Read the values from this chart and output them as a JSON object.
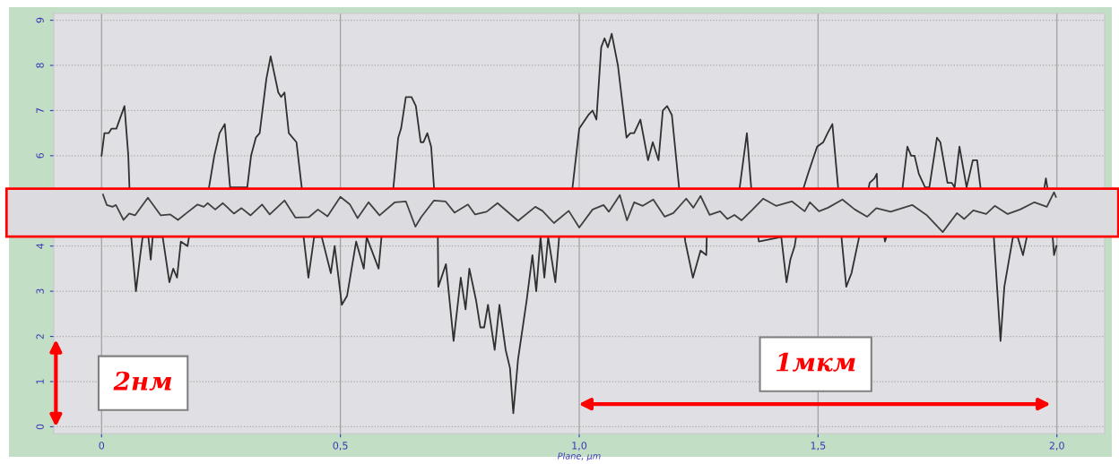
{
  "chart_data": {
    "type": "line",
    "xlabel": "Plane, µm",
    "xlim": [
      -0.1,
      2.1
    ],
    "ylim": [
      -0.15,
      9.15
    ],
    "xticks": [
      0,
      {
        "value": 0.5,
        "label": "0,5"
      },
      {
        "value": 1.0,
        "label": "1,0"
      },
      {
        "value": 1.5,
        "label": "1,5"
      },
      {
        "value": 2.0,
        "label": "2,0"
      }
    ],
    "yticks": [
      0,
      1,
      2,
      3,
      4,
      6,
      7,
      8,
      9
    ],
    "grid": true,
    "legend": false,
    "marker": "none",
    "line_style": "solid",
    "series": [
      {
        "color": "#303030",
        "x": [
          0,
          0.006,
          0.015,
          0.021,
          0.031,
          0.048,
          0.056,
          0.062,
          0.072,
          0.081,
          0.086,
          0.098,
          0.103,
          0.107,
          0.128,
          0.142,
          0.15,
          0.158,
          0.166,
          0.18,
          0.183,
          0.225,
          0.236,
          0.247,
          0.258,
          0.269,
          0.305,
          0.313,
          0.323,
          0.331,
          0.345,
          0.354,
          0.37,
          0.376,
          0.383,
          0.392,
          0.408,
          0.419,
          0.423,
          0.433,
          0.445,
          0.461,
          0.48,
          0.488,
          0.503,
          0.514,
          0.533,
          0.549,
          0.555,
          0.58,
          0.586,
          0.611,
          0.621,
          0.627,
          0.637,
          0.649,
          0.658,
          0.668,
          0.674,
          0.682,
          0.69,
          0.696,
          0.704,
          0.705,
          0.721,
          0.737,
          0.752,
          0.762,
          0.77,
          0.784,
          0.793,
          0.801,
          0.809,
          0.823,
          0.833,
          0.846,
          0.855,
          0.862,
          0.872,
          0.89,
          0.902,
          0.91,
          0.919,
          0.927,
          0.935,
          0.95,
          0.958,
          0.986,
          1.0,
          1.019,
          1.028,
          1.036,
          1.046,
          1.053,
          1.06,
          1.068,
          1.081,
          1.099,
          1.107,
          1.115,
          1.128,
          1.144,
          1.154,
          1.166,
          1.175,
          1.184,
          1.194,
          1.209,
          1.222,
          1.238,
          1.254,
          1.266,
          1.267,
          1.336,
          1.351,
          1.36,
          1.376,
          1.423,
          1.434,
          1.442,
          1.451,
          1.454,
          1.47,
          1.479,
          1.498,
          1.511,
          1.52,
          1.53,
          1.542,
          1.549,
          1.559,
          1.57,
          1.586,
          1.608,
          1.618,
          1.623,
          1.624,
          1.64,
          1.677,
          1.687,
          1.695,
          1.702,
          1.711,
          1.724,
          1.733,
          1.749,
          1.756,
          1.771,
          1.78,
          1.786,
          1.796,
          1.811,
          1.824,
          1.833,
          1.84,
          1.868,
          1.882,
          1.89,
          1.908,
          1.918,
          1.929,
          1.937,
          1.974,
          1.977,
          1.98,
          1.992,
          1.994,
          1.999
        ],
        "values": [
          6.0,
          6.5,
          6.5,
          6.6,
          6.6,
          7.1,
          6.0,
          4.2,
          3.0,
          3.8,
          4.2,
          4.2,
          3.7,
          4.2,
          4.2,
          3.2,
          3.5,
          3.3,
          4.1,
          4.0,
          4.2,
          5.3,
          6.0,
          6.5,
          6.7,
          5.3,
          5.3,
          6.0,
          6.4,
          6.5,
          7.7,
          8.2,
          7.4,
          7.3,
          7.4,
          6.5,
          6.3,
          5.3,
          4.2,
          3.3,
          4.2,
          4.2,
          3.4,
          4.0,
          2.7,
          2.9,
          4.1,
          3.5,
          4.2,
          3.5,
          4.2,
          5.3,
          6.4,
          6.6,
          7.3,
          7.3,
          7.1,
          6.3,
          6.3,
          6.5,
          6.2,
          5.3,
          4.2,
          3.1,
          3.6,
          1.9,
          3.3,
          2.6,
          3.5,
          2.8,
          2.2,
          2.2,
          2.7,
          1.7,
          2.7,
          1.7,
          1.3,
          0.3,
          1.5,
          2.8,
          3.8,
          3.0,
          4.2,
          3.3,
          4.2,
          3.2,
          4.2,
          5.3,
          6.6,
          6.9,
          7.0,
          6.8,
          8.4,
          8.6,
          8.4,
          8.7,
          8.0,
          6.4,
          6.5,
          6.5,
          6.8,
          5.9,
          6.3,
          5.9,
          7.0,
          7.1,
          6.9,
          5.3,
          4.1,
          3.3,
          3.9,
          3.8,
          4.2,
          5.3,
          6.5,
          5.3,
          4.1,
          4.2,
          3.2,
          3.7,
          4.0,
          4.2,
          5.3,
          5.6,
          6.2,
          6.3,
          6.5,
          6.7,
          5.3,
          4.2,
          3.1,
          3.4,
          4.2,
          5.4,
          5.5,
          5.6,
          5.3,
          4.1,
          5.3,
          6.2,
          6.0,
          6.0,
          5.6,
          5.3,
          5.3,
          6.4,
          6.3,
          5.4,
          5.4,
          5.3,
          6.2,
          5.3,
          5.9,
          5.9,
          5.3,
          4.2,
          1.9,
          3.1,
          4.2,
          4.2,
          3.8,
          4.2,
          5.3,
          5.5,
          5.3,
          4.1,
          3.8,
          4.0
        ]
      },
      {
        "color": "#404040",
        "x": [
          0.003,
          0.011,
          0.023,
          0.03,
          0.046,
          0.058,
          0.07,
          0.097,
          0.124,
          0.144,
          0.16,
          0.179,
          0.201,
          0.214,
          0.222,
          0.238,
          0.254,
          0.277,
          0.293,
          0.312,
          0.336,
          0.352,
          0.383,
          0.406,
          0.434,
          0.453,
          0.473,
          0.5,
          0.52,
          0.536,
          0.559,
          0.582,
          0.614,
          0.637,
          0.657,
          0.669,
          0.696,
          0.72,
          0.739,
          0.767,
          0.782,
          0.806,
          0.829,
          0.872,
          0.908,
          0.923,
          0.947,
          0.978,
          1.0,
          1.028,
          1.051,
          1.062,
          1.085,
          1.1,
          1.115,
          1.133,
          1.155,
          1.179,
          1.197,
          1.224,
          1.239,
          1.254,
          1.273,
          1.295,
          1.31,
          1.325,
          1.34,
          1.363,
          1.385,
          1.412,
          1.445,
          1.472,
          1.483,
          1.502,
          1.521,
          1.551,
          1.577,
          1.603,
          1.622,
          1.652,
          1.697,
          1.727,
          1.761,
          1.791,
          1.806,
          1.825,
          1.852,
          1.87,
          1.897,
          1.923,
          1.953,
          1.979,
          1.994,
          1.998
        ],
        "values": [
          5.14,
          4.91,
          4.87,
          4.91,
          4.58,
          4.72,
          4.68,
          5.07,
          4.68,
          4.7,
          4.58,
          4.74,
          4.92,
          4.87,
          4.95,
          4.81,
          4.95,
          4.72,
          4.84,
          4.68,
          4.92,
          4.7,
          5.01,
          4.63,
          4.64,
          4.81,
          4.66,
          5.09,
          4.92,
          4.62,
          4.97,
          4.68,
          4.97,
          4.99,
          4.43,
          4.64,
          5.01,
          4.99,
          4.74,
          4.92,
          4.7,
          4.76,
          4.95,
          4.56,
          4.87,
          4.78,
          4.51,
          4.78,
          4.41,
          4.81,
          4.91,
          4.76,
          5.13,
          4.57,
          4.97,
          4.89,
          5.03,
          4.65,
          4.73,
          5.05,
          4.85,
          5.11,
          4.69,
          4.77,
          4.6,
          4.69,
          4.57,
          4.81,
          5.05,
          4.89,
          4.99,
          4.77,
          4.97,
          4.77,
          4.85,
          5.03,
          4.81,
          4.65,
          4.84,
          4.76,
          4.91,
          4.69,
          4.31,
          4.73,
          4.6,
          4.79,
          4.71,
          4.89,
          4.71,
          4.81,
          4.97,
          4.87,
          5.19,
          5.09
        ]
      }
    ],
    "bands": [
      {
        "axis": "y",
        "from": 4.21,
        "to": 5.27,
        "color": "#ff0000"
      }
    ],
    "annotations": [
      "2нм",
      "1мкм"
    ]
  }
}
